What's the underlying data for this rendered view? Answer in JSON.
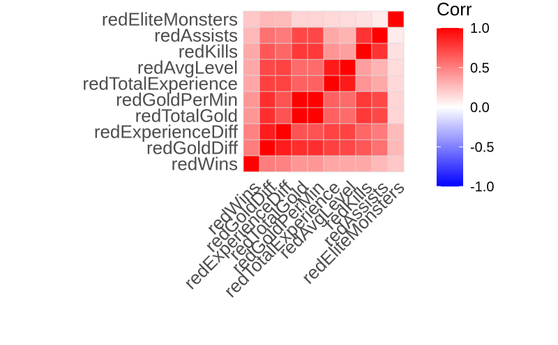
{
  "chart_data": {
    "type": "heatmap",
    "variables": [
      "redWins",
      "redGoldDiff",
      "redExperienceDiff",
      "redTotalGold",
      "redGoldPerMin",
      "redTotalExperience",
      "redAvgLevel",
      "redKills",
      "redAssists",
      "redEliteMonsters"
    ],
    "matrix": [
      [
        1.0,
        0.51,
        0.49,
        0.41,
        0.41,
        0.35,
        0.34,
        0.34,
        0.28,
        0.22
      ],
      [
        0.51,
        1.0,
        0.89,
        0.82,
        0.82,
        0.75,
        0.72,
        0.66,
        0.56,
        0.28
      ],
      [
        0.49,
        0.89,
        1.0,
        0.68,
        0.68,
        0.74,
        0.74,
        0.6,
        0.52,
        0.27
      ],
      [
        0.41,
        0.82,
        0.68,
        1.0,
        1.0,
        0.62,
        0.58,
        0.78,
        0.72,
        0.17
      ],
      [
        0.41,
        0.82,
        0.68,
        1.0,
        1.0,
        0.62,
        0.58,
        0.78,
        0.72,
        0.17
      ],
      [
        0.35,
        0.75,
        0.74,
        0.62,
        0.62,
        1.0,
        0.9,
        0.42,
        0.34,
        0.15
      ],
      [
        0.34,
        0.72,
        0.74,
        0.58,
        0.58,
        0.9,
        1.0,
        0.38,
        0.3,
        0.14
      ],
      [
        0.34,
        0.66,
        0.6,
        0.78,
        0.78,
        0.42,
        0.38,
        1.0,
        0.8,
        0.12
      ],
      [
        0.28,
        0.56,
        0.52,
        0.72,
        0.72,
        0.34,
        0.3,
        0.8,
        1.0,
        0.08
      ],
      [
        0.22,
        0.28,
        0.27,
        0.17,
        0.17,
        0.15,
        0.14,
        0.12,
        0.08,
        1.0
      ]
    ],
    "legend": {
      "title": "Corr",
      "ticks": [
        "1.0",
        "0.5",
        "0.0",
        "-0.5",
        "-1.0"
      ],
      "tick_values": [
        1.0,
        0.5,
        0.0,
        -0.5,
        -1.0
      ],
      "range": [
        -1,
        1
      ]
    },
    "colors": {
      "low": "#0000ff",
      "mid": "#ffffff",
      "high": "#ff0000",
      "tile_border": "#d9d9d9"
    }
  }
}
